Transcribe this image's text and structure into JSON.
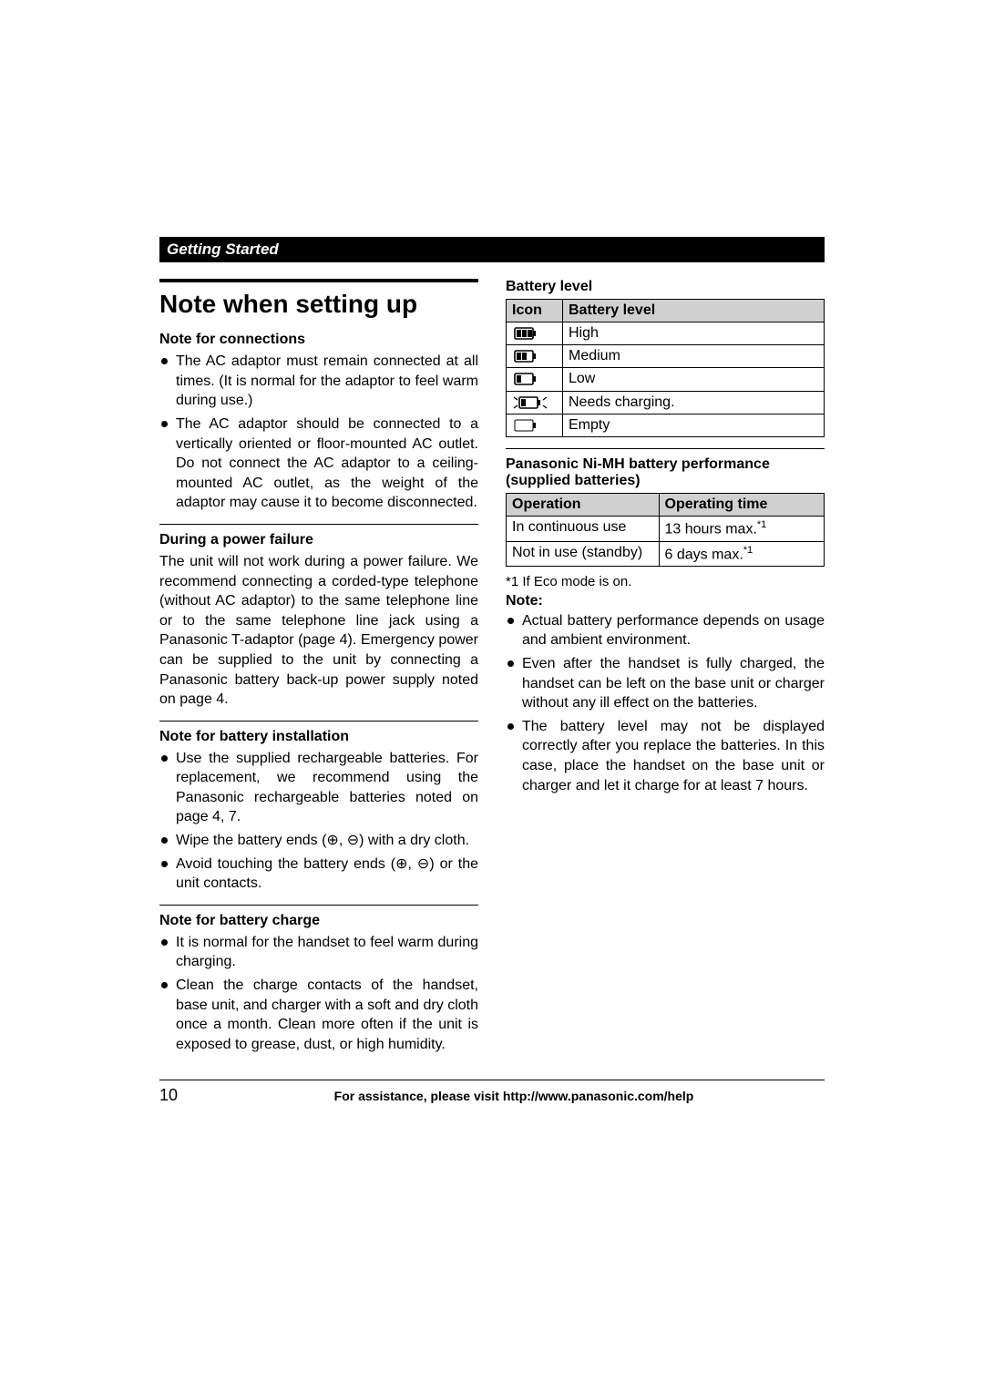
{
  "header": {
    "section": "Getting Started"
  },
  "title": "Note when setting up",
  "left": {
    "connections": {
      "heading": "Note for connections",
      "items": [
        "The AC adaptor must remain connected at all times. (It is normal for the adaptor to feel warm during use.)",
        "The AC adaptor should be connected to a vertically oriented or floor-mounted AC outlet. Do not connect the AC adaptor to a ceiling-mounted AC outlet, as the weight of the adaptor may cause it to become disconnected."
      ]
    },
    "power_failure": {
      "heading": "During a power failure",
      "body": "The unit will not work during a power failure. We recommend connecting a corded-type telephone (without AC adaptor) to the same telephone line or to the same telephone line jack using a Panasonic T-adaptor (page 4). Emergency power can be supplied to the unit by connecting a Panasonic battery back-up power supply noted on page 4."
    },
    "batt_install": {
      "heading": "Note for battery installation",
      "items": [
        "Use the supplied rechargeable batteries. For replacement, we recommend using the Panasonic rechargeable batteries noted on page 4, 7.",
        "Wipe the battery ends (⊕, ⊖) with a dry cloth.",
        "Avoid touching the battery ends (⊕, ⊖) or the unit contacts."
      ]
    },
    "batt_charge": {
      "heading": "Note for battery charge",
      "items": [
        "It is normal for the handset to feel warm during charging.",
        "Clean the charge contacts of the handset, base unit, and charger with a soft and dry cloth once a month. Clean more often if the unit is exposed to grease, dust, or high humidity."
      ]
    }
  },
  "right": {
    "battery_level": {
      "heading": "Battery level",
      "th_icon": "Icon",
      "th_level": "Battery level",
      "rows": [
        {
          "fill": 3,
          "blink": false,
          "empty_outline": false,
          "label": "High"
        },
        {
          "fill": 2,
          "blink": false,
          "empty_outline": false,
          "label": "Medium"
        },
        {
          "fill": 1,
          "blink": false,
          "empty_outline": false,
          "label": "Low"
        },
        {
          "fill": 1,
          "blink": true,
          "empty_outline": false,
          "label": "Needs charging."
        },
        {
          "fill": 0,
          "blink": false,
          "empty_outline": true,
          "label": "Empty"
        }
      ]
    },
    "performance": {
      "heading": "Panasonic Ni-MH battery performance (supplied batteries)",
      "th_op": "Operation",
      "th_time": "Operating time",
      "rows": [
        {
          "op": "In continuous use",
          "time": "13 hours max.",
          "sup": "*1"
        },
        {
          "op": "Not in use (standby)",
          "time": "6 days max.",
          "sup": "*1"
        }
      ]
    },
    "footnote": "*1 If Eco mode is on.",
    "note_label": "Note:",
    "notes": [
      "Actual battery performance depends on usage and ambient environment.",
      "Even after the handset is fully charged, the handset can be left on the base unit or charger without any ill effect on the batteries.",
      "The battery level may not be displayed correctly after you replace the batteries. In this case, place the handset on the base unit or charger and let it charge for at least 7 hours."
    ]
  },
  "footer": {
    "page": "10",
    "text": "For assistance, please visit http://www.panasonic.com/help"
  },
  "colors": {
    "header_bg": "#000000",
    "header_fg": "#ffffff",
    "th_bg": "#d0d0d0",
    "text": "#000000"
  }
}
